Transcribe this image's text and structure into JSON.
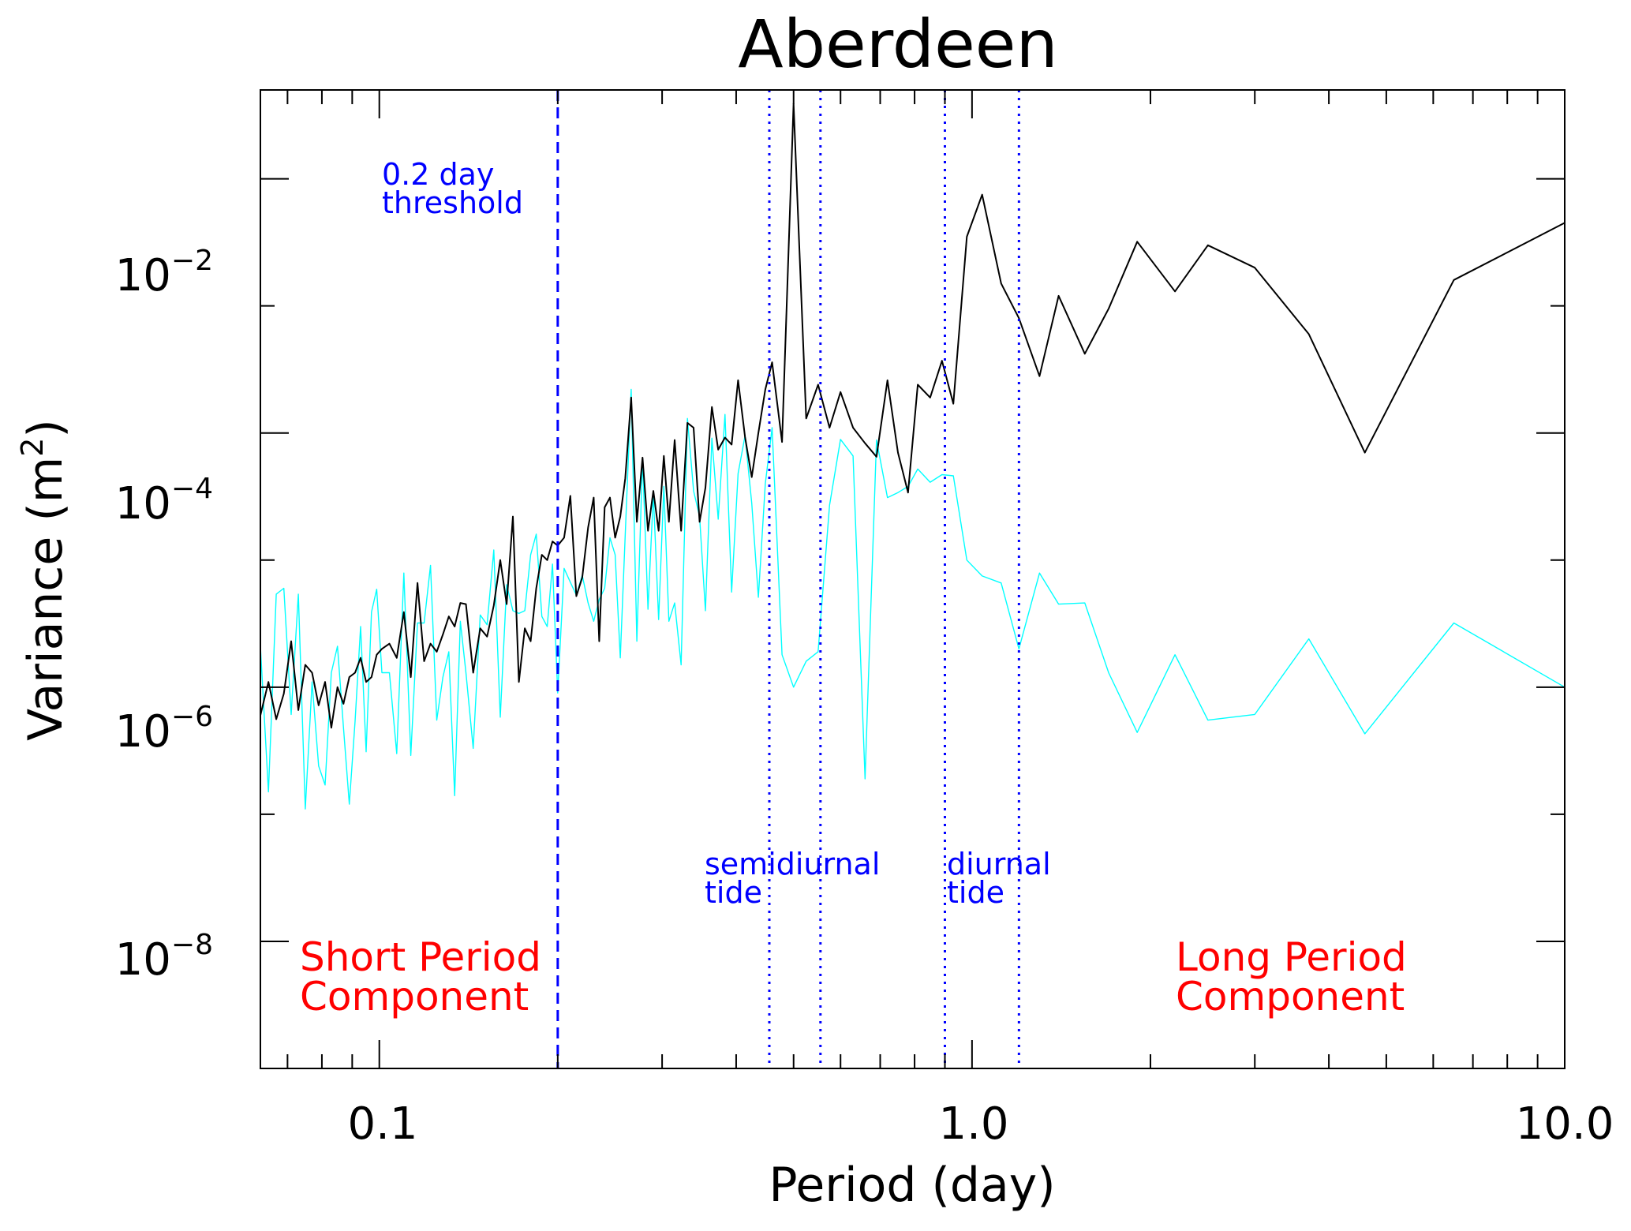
{
  "chart_data": {
    "type": "line",
    "title": "Aberdeen",
    "xlabel": "Period (day)",
    "ylabel": "Variance (m",
    "ylabel_sup": "2",
    "ylabel_close": ")",
    "xscale": "log",
    "yscale": "log",
    "xlim": [
      0.063,
      10.0
    ],
    "ylim": [
      1e-09,
      0.05
    ],
    "grid": false,
    "x_ticks": [
      {
        "value": 0.1,
        "label": "0.1"
      },
      {
        "value": 1.0,
        "label": "1.0"
      },
      {
        "value": 10.0,
        "label": "10.0"
      }
    ],
    "y_ticks": [
      {
        "value": 0.01,
        "base": "10",
        "exp": "−2"
      },
      {
        "value": 0.0001,
        "base": "10",
        "exp": "−4"
      },
      {
        "value": 1e-06,
        "base": "10",
        "exp": "−6"
      },
      {
        "value": 1e-08,
        "base": "10",
        "exp": "−8"
      }
    ],
    "series": [
      {
        "color": "#00ffff",
        "x": [
          0.063,
          0.065,
          0.067,
          0.069,
          0.071,
          0.073,
          0.075,
          0.077,
          0.079,
          0.081,
          0.083,
          0.085,
          0.087,
          0.089,
          0.091,
          0.093,
          0.095,
          0.097,
          0.099,
          0.101,
          0.104,
          0.107,
          0.11,
          0.113,
          0.116,
          0.119,
          0.122,
          0.125,
          0.128,
          0.131,
          0.134,
          0.137,
          0.14,
          0.144,
          0.148,
          0.152,
          0.156,
          0.16,
          0.164,
          0.168,
          0.172,
          0.176,
          0.18,
          0.184,
          0.188,
          0.192,
          0.196,
          0.2,
          0.205,
          0.21,
          0.215,
          0.22,
          0.225,
          0.23,
          0.235,
          0.24,
          0.245,
          0.25,
          0.255,
          0.26,
          0.266,
          0.272,
          0.278,
          0.284,
          0.29,
          0.296,
          0.302,
          0.308,
          0.315,
          0.323,
          0.331,
          0.339,
          0.347,
          0.355,
          0.364,
          0.373,
          0.383,
          0.393,
          0.403,
          0.414,
          0.425,
          0.436,
          0.448,
          0.46,
          0.478,
          0.5,
          0.525,
          0.55,
          0.575,
          0.6,
          0.63,
          0.66,
          0.69,
          0.72,
          0.75,
          0.78,
          0.81,
          0.85,
          0.89,
          0.93,
          0.98,
          1.04,
          1.12,
          1.2,
          1.3,
          1.4,
          1.55,
          1.7,
          1.9,
          2.2,
          2.5,
          3.0,
          3.7,
          4.6,
          6.5,
          10.0
        ],
        "values": [
          2.1e-06,
          1.5e-07,
          5.4e-06,
          6e-06,
          6.1e-07,
          5.4e-06,
          1.1e-07,
          1.1e-06,
          2.4e-07,
          1.7e-07,
          1.3e-06,
          2.1e-06,
          4.8e-07,
          1.2e-07,
          5.4e-07,
          3e-06,
          3.1e-07,
          3.9e-06,
          5.9e-06,
          1.3e-06,
          1.3e-06,
          3e-07,
          7.9e-06,
          2.9e-07,
          3.2e-06,
          3.2e-06,
          9.1e-06,
          5.5e-07,
          1.2e-06,
          1.9e-06,
          1.4e-07,
          3.3e-06,
          1.3e-06,
          3.3e-07,
          3.7e-06,
          3.1e-06,
          1.2e-05,
          5.8e-07,
          6.4e-06,
          4e-06,
          3.8e-06,
          4e-06,
          1.1e-05,
          1.6e-05,
          3.6e-06,
          3e-06,
          9.3e-06,
          9e-07,
          8.6e-06,
          6.7e-06,
          5.3e-06,
          7.6e-06,
          4.6e-06,
          3.3e-06,
          4.9e-06,
          6e-06,
          1.5e-05,
          1.1e-05,
          1.7e-06,
          1.6e-05,
          0.00022,
          2.3e-06,
          6.3e-05,
          4.1e-06,
          3.3e-05,
          3.4e-06,
          3.8e-05,
          3.3e-06,
          4.6e-06,
          1.5e-06,
          0.00013,
          3.5e-05,
          2.2e-05,
          4e-06,
          9.1e-05,
          2.1e-05,
          0.00014,
          5.6e-06,
          4.8e-05,
          9.5e-05,
          2.8e-05,
          5.1e-06,
          4e-05,
          0.00011,
          1.8e-06,
          1e-06,
          1.6e-06,
          1.9e-06,
          2.7e-05,
          8.9e-05,
          6.6e-05,
          1.9e-07,
          8.8e-05,
          3.1e-05,
          3.4e-05,
          3.8e-05,
          5.2e-05,
          4.1e-05,
          4.7e-05,
          4.6e-05,
          1e-05,
          7.5e-06,
          6.6e-06,
          2e-06,
          7.9e-06,
          4.5e-06,
          4.6e-06,
          1.3e-06,
          4.4e-07,
          1.8e-06,
          5.5e-07,
          6.1e-07,
          2.4e-06,
          4.3e-07,
          3.2e-06,
          1e-06
        ]
      },
      {
        "color": "#000000",
        "x": [
          0.063,
          0.065,
          0.067,
          0.069,
          0.071,
          0.073,
          0.075,
          0.077,
          0.079,
          0.081,
          0.083,
          0.085,
          0.087,
          0.089,
          0.091,
          0.093,
          0.095,
          0.097,
          0.099,
          0.101,
          0.104,
          0.107,
          0.11,
          0.113,
          0.116,
          0.119,
          0.122,
          0.125,
          0.128,
          0.131,
          0.134,
          0.137,
          0.14,
          0.144,
          0.148,
          0.152,
          0.156,
          0.16,
          0.164,
          0.168,
          0.172,
          0.176,
          0.18,
          0.184,
          0.188,
          0.192,
          0.196,
          0.2,
          0.205,
          0.21,
          0.215,
          0.22,
          0.225,
          0.23,
          0.235,
          0.24,
          0.245,
          0.25,
          0.255,
          0.26,
          0.266,
          0.272,
          0.278,
          0.284,
          0.29,
          0.296,
          0.302,
          0.308,
          0.315,
          0.323,
          0.331,
          0.339,
          0.347,
          0.355,
          0.364,
          0.373,
          0.383,
          0.393,
          0.403,
          0.414,
          0.425,
          0.436,
          0.448,
          0.46,
          0.478,
          0.5,
          0.525,
          0.55,
          0.575,
          0.6,
          0.63,
          0.66,
          0.69,
          0.72,
          0.75,
          0.78,
          0.81,
          0.85,
          0.89,
          0.93,
          0.98,
          1.04,
          1.12,
          1.2,
          1.3,
          1.4,
          1.55,
          1.7,
          1.9,
          2.2,
          2.5,
          3.0,
          3.7,
          4.6,
          6.5,
          10.0
        ],
        "values": [
          6e-07,
          1.1e-06,
          5.6e-07,
          8.9e-07,
          2.3e-06,
          6.6e-07,
          1.5e-06,
          1.3e-06,
          7.2e-07,
          1.1e-06,
          4.8e-07,
          1e-06,
          7.4e-07,
          1.2e-06,
          1.3e-06,
          1.7e-06,
          1.1e-06,
          1.2e-06,
          1.8e-06,
          2e-06,
          2.2e-06,
          1.7e-06,
          3.9e-06,
          1.2e-06,
          6.6e-06,
          1.6e-06,
          2.2e-06,
          1.9e-06,
          2.6e-06,
          3.6e-06,
          3e-06,
          4.6e-06,
          4.5e-06,
          1.3e-06,
          2.9e-06,
          2.5e-06,
          4.4e-06,
          1e-05,
          4.5e-06,
          2.2e-05,
          1.1e-06,
          2.9e-06,
          2.3e-06,
          6e-06,
          1.1e-05,
          1e-05,
          1.4e-05,
          1.3e-05,
          1.5e-05,
          3.2e-05,
          5.2e-06,
          7.3e-06,
          1.8e-05,
          3.1e-05,
          2.3e-06,
          2.6e-05,
          3.1e-05,
          1.5e-05,
          2.2e-05,
          4.4e-05,
          0.00019,
          2e-05,
          6.4e-05,
          1.7e-05,
          3.5e-05,
          1.7e-05,
          6.6e-05,
          2e-05,
          8.8e-05,
          1.7e-05,
          0.00012,
          0.00011,
          2e-05,
          3.7e-05,
          0.00016,
          7.4e-05,
          9.2e-05,
          8.1e-05,
          0.00026,
          9.3e-05,
          4.5e-05,
          0.0001,
          0.00022,
          0.00036,
          8.5e-05,
          0.039,
          0.00013,
          0.00024,
          0.00011,
          0.00021,
          0.00011,
          8.3e-05,
          6.5e-05,
          0.00026,
          7e-05,
          3.4e-05,
          0.00024,
          0.00019,
          0.00037,
          0.00017,
          0.0035,
          0.0075,
          0.0015,
          0.0008,
          0.00028,
          0.0012,
          0.00042,
          0.00095,
          0.0032,
          0.0013,
          0.003,
          0.002,
          0.0006,
          7e-05,
          0.0016,
          0.0045
        ]
      }
    ],
    "reference_lines": [
      {
        "x": 0.2,
        "style": "dashed",
        "color": "#0000ff"
      },
      {
        "x": 0.455,
        "style": "dotted",
        "color": "#0000ff"
      },
      {
        "x": 0.555,
        "style": "dotted",
        "color": "#0000ff"
      },
      {
        "x": 0.9,
        "style": "dotted",
        "color": "#0000ff"
      },
      {
        "x": 1.2,
        "style": "dotted",
        "color": "#0000ff"
      }
    ],
    "annotations": {
      "threshold": [
        "0.2 day",
        "threshold"
      ],
      "semidiurnal": [
        "semidiurnal",
        "tide"
      ],
      "diurnal": [
        "diurnal",
        "tide"
      ],
      "short_period": [
        "Short Period",
        "Component"
      ],
      "long_period": [
        "Long Period",
        "Component"
      ]
    },
    "annotation_colors": {
      "blue": "#0000ff",
      "red": "#ff0000"
    }
  }
}
